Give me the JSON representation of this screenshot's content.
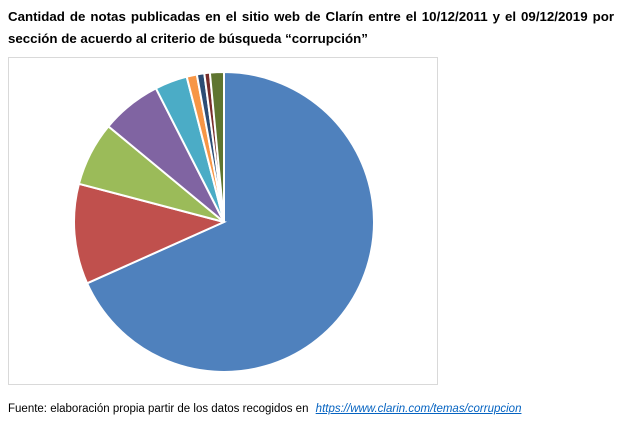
{
  "title": "Cantidad de notas publicadas en el sitio web de Clarín entre el 10/12/2011 y el 09/12/2019 por sección de acuerdo al criterio de búsqueda “corrupción”",
  "footer": {
    "text": "Fuente: elaboración propia partir de los datos recogidos en",
    "link": "https://www.clarin.com/temas/corrupcion"
  },
  "chart_data": {
    "type": "pie",
    "title": "Cantidad de notas publicadas en el sitio web de Clarín entre el 10/12/2011 y el 09/12/2019 por sección de acuerdo al criterio de búsqueda “corrupción”",
    "start_angle": "12 o'clock, clockwise",
    "unit": "percent (estimated)",
    "values": [
      68.3,
      10.8,
      6.9,
      6.5,
      3.5,
      1.1,
      0.8,
      0.6,
      1.5
    ],
    "colors": [
      "#4f81bd",
      "#c0504d",
      "#9bbb59",
      "#8064a2",
      "#4bacc6",
      "#f79646",
      "#2c4d75",
      "#772c2a",
      "#5f7530"
    ],
    "legend": "none",
    "data_labels": "none"
  }
}
